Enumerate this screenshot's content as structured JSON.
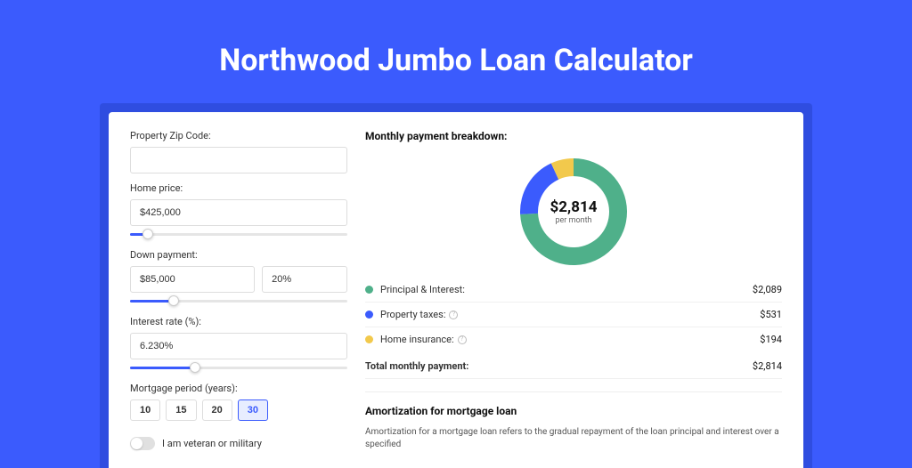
{
  "page": {
    "title": "Northwood Jumbo Loan Calculator",
    "background_color": "#3b5bfd",
    "card_shadow_color": "#2f4de0"
  },
  "form": {
    "zip": {
      "label": "Property Zip Code:",
      "value": ""
    },
    "home_price": {
      "label": "Home price:",
      "value": "$425,000",
      "slider_pct": 8
    },
    "down_payment": {
      "label": "Down payment:",
      "amount": "$85,000",
      "percent": "20%",
      "slider_pct": 20
    },
    "interest_rate": {
      "label": "Interest rate (%):",
      "value": "6.230%",
      "slider_pct": 30
    },
    "mortgage_period": {
      "label": "Mortgage period (years):",
      "options": [
        "10",
        "15",
        "20",
        "30"
      ],
      "selected": "30"
    },
    "veteran": {
      "label": "I am veteran or military",
      "on": false
    }
  },
  "breakdown": {
    "title": "Monthly payment breakdown:",
    "center_amount": "$2,814",
    "center_sub": "per month",
    "donut": {
      "type": "donut",
      "size": 120,
      "inner_radius": 40,
      "outer_radius": 60,
      "background_color": "#ffffff",
      "slices": [
        {
          "key": "principal_interest",
          "value": 2089,
          "color": "#4fb08a"
        },
        {
          "key": "property_taxes",
          "value": 531,
          "color": "#3b5bfd"
        },
        {
          "key": "home_insurance",
          "value": 194,
          "color": "#f2c94c"
        }
      ]
    },
    "rows": [
      {
        "label": "Principal & Interest:",
        "value": "$2,089",
        "color": "#4fb08a",
        "info": false
      },
      {
        "label": "Property taxes:",
        "value": "$531",
        "color": "#3b5bfd",
        "info": true
      },
      {
        "label": "Home insurance:",
        "value": "$194",
        "color": "#f2c94c",
        "info": true
      }
    ],
    "total": {
      "label": "Total monthly payment:",
      "value": "$2,814"
    }
  },
  "amortization": {
    "title": "Amortization for mortgage loan",
    "text": "Amortization for a mortgage loan refers to the gradual repayment of the loan principal and interest over a specified"
  }
}
